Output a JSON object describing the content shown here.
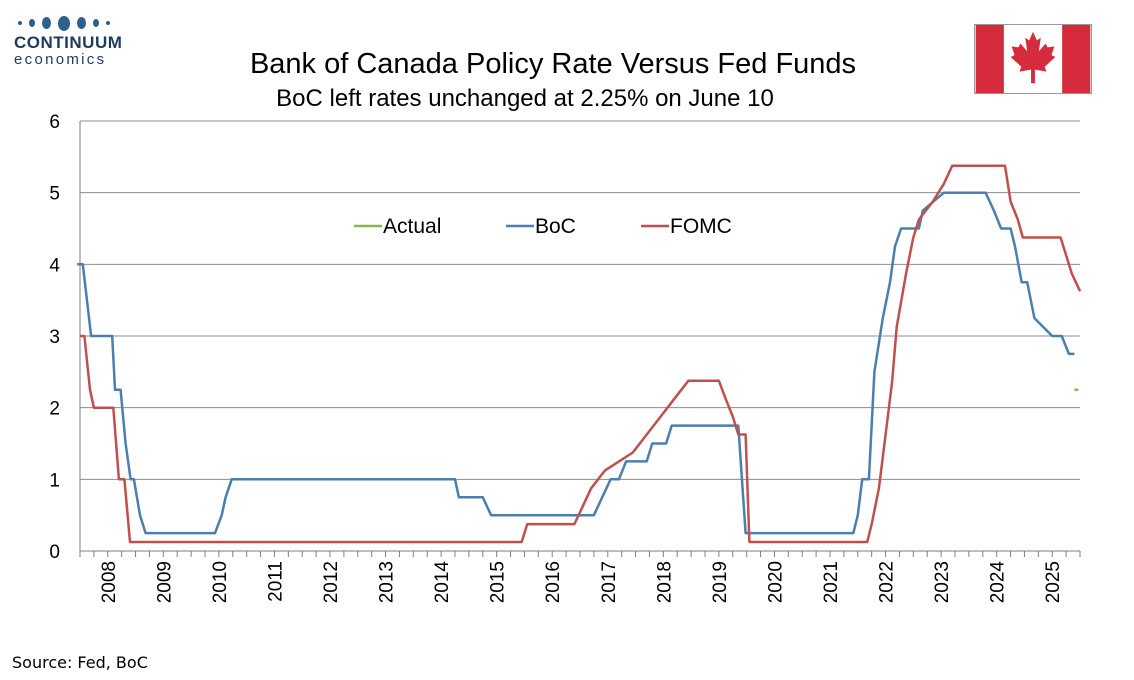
{
  "brand": {
    "name_line1": "CONTINUUM",
    "name_line2": "economics",
    "color": "#1d3b5a"
  },
  "flag": {
    "icon": "canada-flag-icon",
    "red": "#d52b3c",
    "white": "#ffffff"
  },
  "source": "Source: Fed, BoC",
  "chart_data": {
    "type": "line",
    "title": "Bank of Canada Policy Rate Versus Fed Funds",
    "subtitle": "BoC left rates unchanged at 2.25% on June 10",
    "ylim": [
      0,
      6
    ],
    "yticks": [
      0,
      1,
      2,
      3,
      4,
      5,
      6
    ],
    "xlim": [
      2008.0,
      2026.0
    ],
    "xtick_labels": [
      "2008",
      "2009",
      "2010",
      "2011",
      "2012",
      "2013",
      "2014",
      "2015",
      "2016",
      "2017",
      "2018",
      "2019",
      "2020",
      "2021",
      "2022",
      "2023",
      "2024",
      "2025"
    ],
    "grid": "horizontal",
    "legend_position": "top-center",
    "series": [
      {
        "name": "Actual",
        "color": "#8ab34a",
        "x": [
          2025.9,
          2025.97
        ],
        "y": [
          2.25,
          2.25
        ]
      },
      {
        "name": "BoC",
        "color": "#4a7fb0",
        "x": [
          2007.95,
          2008.05,
          2008.2,
          2008.58,
          2008.63,
          2008.73,
          2008.82,
          2008.91,
          2008.97,
          2009.08,
          2009.18,
          2009.3,
          2010.43,
          2010.55,
          2010.62,
          2010.73,
          2014.75,
          2014.82,
          2015.25,
          2015.4,
          2017.25,
          2017.4,
          2017.55,
          2017.7,
          2017.83,
          2017.95,
          2018.2,
          2018.3,
          2018.55,
          2018.65,
          2019.8,
          2019.85,
          2019.98,
          2021.92,
          2022.0,
          2022.08,
          2022.2,
          2022.3,
          2022.45,
          2022.58,
          2022.67,
          2022.78,
          2022.83,
          2023.1,
          2023.17,
          2023.55,
          2024.3,
          2024.45,
          2024.58,
          2024.75,
          2024.83,
          2024.95,
          2025.05,
          2025.18,
          2025.5,
          2025.67,
          2025.8,
          2025.9
        ],
        "y": [
          4.0,
          4.0,
          3.0,
          3.0,
          2.25,
          2.25,
          1.5,
          1.0,
          1.0,
          0.5,
          0.25,
          0.25,
          0.25,
          0.5,
          0.75,
          1.0,
          1.0,
          0.75,
          0.75,
          0.5,
          0.5,
          0.75,
          1.0,
          1.0,
          1.25,
          1.25,
          1.25,
          1.5,
          1.5,
          1.75,
          1.75,
          1.75,
          0.25,
          0.25,
          0.5,
          1.0,
          1.0,
          2.5,
          3.25,
          3.75,
          4.25,
          4.5,
          4.5,
          4.5,
          4.75,
          5.0,
          5.0,
          4.75,
          4.5,
          4.5,
          4.25,
          3.75,
          3.75,
          3.25,
          3.0,
          3.0,
          2.75,
          2.75
        ]
      },
      {
        "name": "FOMC",
        "color": "#c0504d",
        "x": [
          2008.0,
          2008.08,
          2008.18,
          2008.25,
          2008.6,
          2008.7,
          2008.8,
          2008.9,
          2008.95,
          2015.95,
          2016.05,
          2016.9,
          2017.05,
          2017.2,
          2017.45,
          2017.95,
          2018.2,
          2018.45,
          2018.7,
          2018.95,
          2019.5,
          2019.62,
          2019.75,
          2019.85,
          2019.98,
          2020.05,
          2022.17,
          2022.25,
          2022.38,
          2022.5,
          2022.62,
          2022.7,
          2022.87,
          2023.0,
          2023.1,
          2023.35,
          2023.55,
          2023.7,
          2024.65,
          2024.75,
          2024.88,
          2024.97,
          2025.2,
          2025.65,
          2025.85,
          2026.0
        ],
        "y": [
          3.0,
          3.0,
          2.25,
          2.0,
          2.0,
          1.0,
          1.0,
          0.125,
          0.125,
          0.125,
          0.375,
          0.375,
          0.625,
          0.875,
          1.125,
          1.375,
          1.625,
          1.875,
          2.125,
          2.375,
          2.375,
          2.125,
          1.875,
          1.625,
          1.625,
          0.125,
          0.125,
          0.375,
          0.875,
          1.625,
          2.375,
          3.125,
          3.875,
          4.375,
          4.625,
          4.875,
          5.125,
          5.375,
          5.375,
          4.875,
          4.625,
          4.375,
          4.375,
          4.375,
          3.875,
          3.625
        ]
      }
    ]
  }
}
